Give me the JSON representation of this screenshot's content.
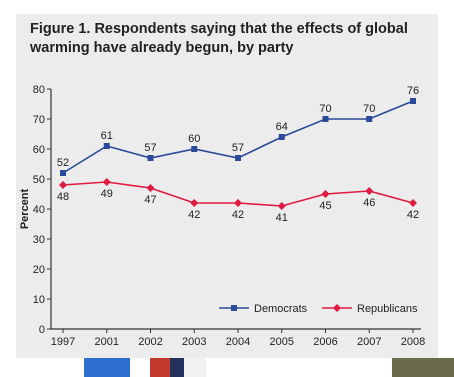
{
  "figure": {
    "title": "Figure 1. Respondents saying that the effects of global warming have already begun, by party"
  },
  "chart_data": {
    "type": "line",
    "title": "Figure 1. Respondents saying that the effects of global warming have already begun, by party",
    "xlabel": "",
    "ylabel": "Percent",
    "x": [
      "1997",
      "2001",
      "2002",
      "2003",
      "2004",
      "2005",
      "2006",
      "2007",
      "2008"
    ],
    "ylim": [
      0,
      80
    ],
    "yticks": [
      0,
      10,
      20,
      30,
      40,
      50,
      60,
      70,
      80
    ],
    "grid": false,
    "legend": "bottom-right",
    "series": [
      {
        "name": "Democrats",
        "values": [
          52,
          61,
          57,
          60,
          57,
          64,
          70,
          70,
          76
        ],
        "color": "#2b4a9a",
        "marker": "square"
      },
      {
        "name": "Republicans",
        "values": [
          48,
          49,
          47,
          42,
          42,
          41,
          45,
          46,
          42
        ],
        "color": "#e0193f",
        "marker": "diamond"
      }
    ]
  },
  "colors": {
    "panel": "#ececec",
    "axis": "#333333",
    "text": "#222222"
  }
}
